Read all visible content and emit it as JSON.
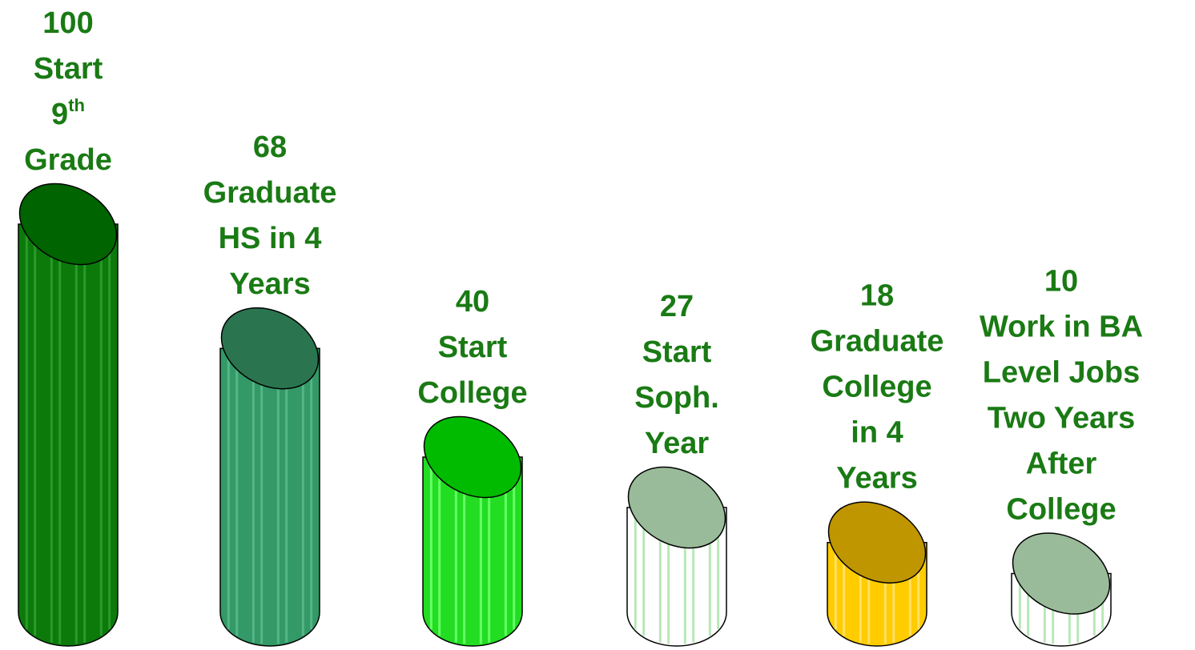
{
  "chart_data": {
    "type": "cylinder",
    "categories": [
      [
        "Start",
        "9th",
        "Grade"
      ],
      [
        "Graduate",
        "HS in 4",
        "Years"
      ],
      [
        "Start",
        "College"
      ],
      [
        "Start",
        "Soph.",
        "Year"
      ],
      [
        "Graduate",
        "College",
        "in 4",
        "Years"
      ],
      [
        "Work in BA",
        "Level Jobs",
        "Two Years",
        "After",
        "College"
      ]
    ],
    "values": [
      100,
      68,
      40,
      27,
      18,
      10
    ],
    "colors": [
      "#0b7a0b",
      "#339966",
      "#22dd22",
      "#ffffff",
      "#ffcc00",
      "#ffffff"
    ],
    "top_colors": [
      "#006400",
      "#2a7550",
      "#00bb00",
      "#99bb99",
      "#c09600",
      "#99bb99"
    ],
    "stripe_colors": [
      "#2a9a2a",
      "#55b588",
      "#66ff66",
      "#b8e8b8",
      "#ffe066",
      "#b8e8b8"
    ]
  }
}
